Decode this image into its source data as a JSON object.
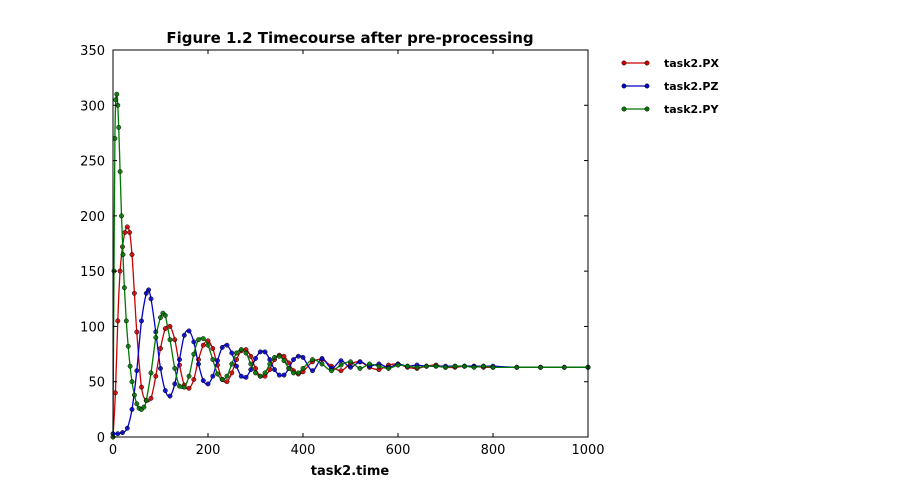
{
  "chart_data": {
    "type": "line",
    "title": "Figure 1.2 Timecourse after pre-processing",
    "xlabel": "task2.time",
    "ylabel": "",
    "xlim": [
      0,
      1000
    ],
    "ylim": [
      0,
      350
    ],
    "xticks": [
      0,
      200,
      400,
      600,
      800,
      1000
    ],
    "yticks": [
      0,
      50,
      100,
      150,
      200,
      250,
      300,
      350
    ],
    "grid": false,
    "legend_position": "outside-top-right",
    "series": [
      {
        "name": "task2.PX",
        "color": "#cc0000",
        "marker": "circle",
        "x": [
          0,
          5,
          10,
          15,
          20,
          25,
          30,
          35,
          40,
          45,
          50,
          60,
          70,
          80,
          90,
          100,
          110,
          120,
          130,
          140,
          150,
          160,
          170,
          180,
          190,
          200,
          210,
          220,
          230,
          240,
          250,
          260,
          270,
          280,
          290,
          300,
          310,
          320,
          330,
          340,
          350,
          360,
          370,
          380,
          390,
          400,
          420,
          440,
          460,
          480,
          500,
          520,
          540,
          560,
          580,
          600,
          620,
          640,
          660,
          680,
          700,
          720,
          740,
          760,
          780,
          800,
          850,
          900,
          950,
          1000
        ],
        "values": [
          0,
          40,
          105,
          150,
          172,
          185,
          190,
          185,
          165,
          130,
          95,
          45,
          33,
          35,
          55,
          80,
          98,
          100,
          88,
          65,
          47,
          44,
          52,
          70,
          83,
          87,
          80,
          65,
          52,
          50,
          58,
          70,
          78,
          79,
          73,
          62,
          55,
          55,
          61,
          70,
          74,
          73,
          67,
          60,
          57,
          59,
          68,
          70,
          64,
          60,
          66,
          68,
          63,
          61,
          65,
          66,
          63,
          62,
          64,
          65,
          63,
          63,
          64,
          64,
          63,
          63,
          63,
          63,
          63,
          63
        ]
      },
      {
        "name": "task2.PZ",
        "color": "#0000cc",
        "marker": "circle",
        "x": [
          0,
          10,
          20,
          30,
          40,
          50,
          60,
          70,
          75,
          80,
          90,
          100,
          110,
          120,
          130,
          140,
          150,
          160,
          170,
          180,
          190,
          200,
          210,
          220,
          230,
          240,
          250,
          260,
          270,
          280,
          290,
          300,
          310,
          320,
          330,
          340,
          350,
          360,
          370,
          380,
          390,
          400,
          420,
          440,
          460,
          480,
          500,
          520,
          540,
          560,
          580,
          600,
          620,
          640,
          660,
          680,
          700,
          720,
          740,
          760,
          780,
          800,
          850,
          900,
          950,
          1000
        ],
        "values": [
          3,
          3,
          4,
          8,
          25,
          60,
          105,
          130,
          133,
          125,
          95,
          62,
          42,
          37,
          48,
          70,
          92,
          96,
          86,
          66,
          51,
          48,
          55,
          69,
          81,
          83,
          76,
          64,
          55,
          54,
          61,
          71,
          77,
          77,
          70,
          61,
          56,
          56,
          62,
          70,
          73,
          72,
          60,
          71,
          62,
          69,
          63,
          68,
          64,
          66,
          63,
          66,
          64,
          65,
          64,
          64,
          64,
          64,
          64,
          64,
          64,
          64,
          63,
          63,
          63,
          63
        ]
      },
      {
        "name": "task2.PY",
        "color": "#007700",
        "marker": "circle",
        "x": [
          0,
          2,
          4,
          6,
          8,
          10,
          12,
          15,
          18,
          21,
          24,
          28,
          32,
          36,
          40,
          45,
          50,
          55,
          60,
          65,
          70,
          80,
          90,
          100,
          105,
          110,
          120,
          130,
          140,
          150,
          160,
          170,
          180,
          190,
          200,
          210,
          220,
          230,
          240,
          250,
          260,
          270,
          280,
          290,
          300,
          310,
          320,
          330,
          340,
          350,
          360,
          370,
          380,
          390,
          400,
          420,
          440,
          460,
          480,
          500,
          520,
          540,
          560,
          580,
          600,
          620,
          640,
          660,
          680,
          700,
          720,
          740,
          760,
          780,
          800,
          850,
          900,
          950,
          1000
        ],
        "values": [
          0,
          150,
          270,
          305,
          310,
          300,
          280,
          240,
          200,
          165,
          135,
          105,
          82,
          64,
          50,
          38,
          30,
          26,
          25,
          27,
          33,
          58,
          90,
          108,
          112,
          110,
          88,
          62,
          46,
          45,
          55,
          75,
          88,
          89,
          83,
          70,
          57,
          52,
          55,
          66,
          76,
          79,
          76,
          66,
          58,
          55,
          58,
          66,
          72,
          73,
          69,
          62,
          58,
          58,
          62,
          70,
          66,
          60,
          65,
          68,
          62,
          66,
          64,
          62,
          65,
          64,
          63,
          64,
          64,
          63,
          64,
          64,
          63,
          64,
          63,
          63,
          63,
          63,
          63
        ]
      }
    ]
  }
}
